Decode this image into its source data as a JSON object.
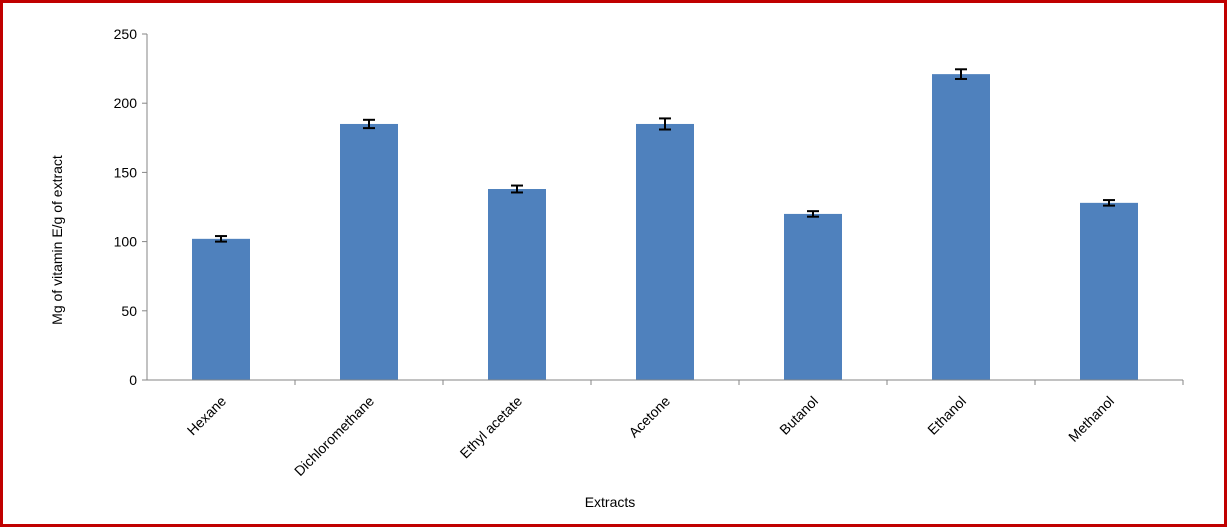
{
  "colors": {
    "frame": "#c00000",
    "bar": "#4f81bd",
    "axis": "#868686",
    "errorbar": "#000000"
  },
  "chart_data": {
    "type": "bar",
    "title": "",
    "xlabel": "Extracts",
    "ylabel": "Mg of vitamin E/g of extract",
    "ylim": [
      0,
      250
    ],
    "yticks": [
      0,
      50,
      100,
      150,
      200,
      250
    ],
    "grid": false,
    "categories": [
      "Hexane",
      "Dichloromethane",
      "Ethyl acetate",
      "Acetone",
      "Butanol",
      "Ethanol",
      "Methanol"
    ],
    "values": [
      102,
      185,
      138,
      185,
      120,
      221,
      128
    ],
    "errors": [
      2,
      3,
      2.5,
      4,
      2,
      3.5,
      2
    ]
  }
}
